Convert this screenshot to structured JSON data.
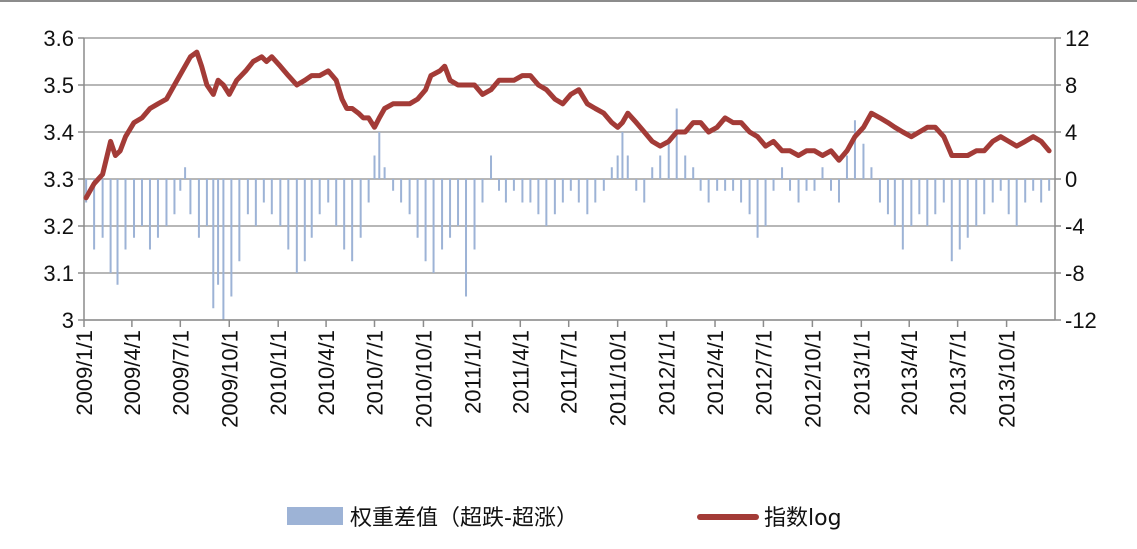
{
  "chart_data": {
    "type": "bar+line",
    "title": "",
    "y_left": {
      "range": [
        3.0,
        3.6
      ],
      "ticks": [
        "3",
        "3.1",
        "3.2",
        "3.3",
        "3.4",
        "3.5",
        "3.6"
      ]
    },
    "y_right": {
      "range": [
        -12,
        12
      ],
      "ticks": [
        "-12",
        "-8",
        "-4",
        "0",
        "4",
        "8",
        "12"
      ]
    },
    "x_axis": {
      "start": "2009/1/1",
      "end": "2013/12/31",
      "tick_labels": [
        "2009/1/1",
        "2009/4/1",
        "2009/7/1",
        "2009/10/1",
        "2010/1/1",
        "2010/4/1",
        "2010/7/1",
        "2010/10/1",
        "2011/1/1",
        "2011/4/1",
        "2011/7/1",
        "2011/10/1",
        "2012/1/1",
        "2012/4/1",
        "2012/7/1",
        "2012/10/1",
        "2013/1/1",
        "2013/4/1",
        "2013/7/1",
        "2013/10/1"
      ]
    },
    "gridlines": "horizontal",
    "legend": {
      "placement": "bottom"
    },
    "series": [
      {
        "name": "权重差值（超跌-超涨）",
        "type": "bar",
        "axis": "right",
        "color": "#9db3d6",
        "points": [
          [
            "2009/1/5",
            -2
          ],
          [
            "2009/1/20",
            -6
          ],
          [
            "2009/2/5",
            -5
          ],
          [
            "2009/2/20",
            -8
          ],
          [
            "2009/3/5",
            -9
          ],
          [
            "2009/3/20",
            -6
          ],
          [
            "2009/4/5",
            -5
          ],
          [
            "2009/4/20",
            -4
          ],
          [
            "2009/5/5",
            -6
          ],
          [
            "2009/5/20",
            -5
          ],
          [
            "2009/6/5",
            -4
          ],
          [
            "2009/6/20",
            -3
          ],
          [
            "2009/7/1",
            -1
          ],
          [
            "2009/7/10",
            1
          ],
          [
            "2009/7/20",
            -3
          ],
          [
            "2009/8/5",
            -5
          ],
          [
            "2009/8/20",
            -4
          ],
          [
            "2009/9/1",
            -11
          ],
          [
            "2009/9/10",
            -9
          ],
          [
            "2009/9/20",
            -12
          ],
          [
            "2009/10/5",
            -10
          ],
          [
            "2009/10/20",
            -7
          ],
          [
            "2009/11/5",
            -3
          ],
          [
            "2009/11/20",
            -4
          ],
          [
            "2009/12/5",
            -2
          ],
          [
            "2009/12/20",
            -3
          ],
          [
            "2010/1/5",
            -4
          ],
          [
            "2010/1/20",
            -6
          ],
          [
            "2010/2/5",
            -8
          ],
          [
            "2010/2/20",
            -7
          ],
          [
            "2010/3/5",
            -5
          ],
          [
            "2010/3/20",
            -3
          ],
          [
            "2010/4/5",
            -2
          ],
          [
            "2010/4/20",
            -4
          ],
          [
            "2010/5/5",
            -6
          ],
          [
            "2010/5/20",
            -7
          ],
          [
            "2010/6/5",
            -5
          ],
          [
            "2010/6/20",
            -2
          ],
          [
            "2010/7/1",
            2
          ],
          [
            "2010/7/10",
            4
          ],
          [
            "2010/7/20",
            1
          ],
          [
            "2010/8/5",
            -1
          ],
          [
            "2010/8/20",
            -2
          ],
          [
            "2010/9/5",
            -3
          ],
          [
            "2010/9/20",
            -5
          ],
          [
            "2010/10/5",
            -7
          ],
          [
            "2010/10/20",
            -8
          ],
          [
            "2010/11/5",
            -6
          ],
          [
            "2010/11/20",
            -5
          ],
          [
            "2010/12/5",
            -4
          ],
          [
            "2010/12/20",
            -10
          ],
          [
            "2011/1/5",
            -6
          ],
          [
            "2011/1/20",
            -2
          ],
          [
            "2011/2/5",
            2
          ],
          [
            "2011/2/20",
            -1
          ],
          [
            "2011/3/5",
            -2
          ],
          [
            "2011/3/20",
            -1
          ],
          [
            "2011/4/5",
            -2
          ],
          [
            "2011/4/20",
            -2
          ],
          [
            "2011/5/5",
            -3
          ],
          [
            "2011/5/20",
            -4
          ],
          [
            "2011/6/5",
            -3
          ],
          [
            "2011/6/20",
            -2
          ],
          [
            "2011/7/5",
            -1
          ],
          [
            "2011/7/20",
            -2
          ],
          [
            "2011/8/5",
            -3
          ],
          [
            "2011/8/20",
            -2
          ],
          [
            "2011/9/5",
            -1
          ],
          [
            "2011/9/20",
            1
          ],
          [
            "2011/10/1",
            2
          ],
          [
            "2011/10/10",
            4
          ],
          [
            "2011/10/20",
            2
          ],
          [
            "2011/11/5",
            -1
          ],
          [
            "2011/11/20",
            -2
          ],
          [
            "2011/12/5",
            1
          ],
          [
            "2011/12/20",
            2
          ],
          [
            "2012/1/5",
            3
          ],
          [
            "2012/1/20",
            6
          ],
          [
            "2012/2/5",
            2
          ],
          [
            "2012/2/20",
            1
          ],
          [
            "2012/3/5",
            -1
          ],
          [
            "2012/3/20",
            -2
          ],
          [
            "2012/4/5",
            -1
          ],
          [
            "2012/4/20",
            -1
          ],
          [
            "2012/5/5",
            -1
          ],
          [
            "2012/5/20",
            -2
          ],
          [
            "2012/6/5",
            -3
          ],
          [
            "2012/6/20",
            -5
          ],
          [
            "2012/7/5",
            -4
          ],
          [
            "2012/7/20",
            -1
          ],
          [
            "2012/8/5",
            1
          ],
          [
            "2012/8/20",
            -1
          ],
          [
            "2012/9/5",
            -2
          ],
          [
            "2012/9/20",
            -1
          ],
          [
            "2012/10/5",
            -1
          ],
          [
            "2012/10/20",
            1
          ],
          [
            "2012/11/5",
            -1
          ],
          [
            "2012/11/20",
            -2
          ],
          [
            "2012/12/5",
            2
          ],
          [
            "2012/12/20",
            5
          ],
          [
            "2013/1/5",
            3
          ],
          [
            "2013/1/20",
            1
          ],
          [
            "2013/2/5",
            -2
          ],
          [
            "2013/2/20",
            -3
          ],
          [
            "2013/3/5",
            -4
          ],
          [
            "2013/3/20",
            -6
          ],
          [
            "2013/4/5",
            -4
          ],
          [
            "2013/4/20",
            -3
          ],
          [
            "2013/5/5",
            -4
          ],
          [
            "2013/5/20",
            -3
          ],
          [
            "2013/6/5",
            -2
          ],
          [
            "2013/6/20",
            -7
          ],
          [
            "2013/7/5",
            -6
          ],
          [
            "2013/7/20",
            -5
          ],
          [
            "2013/8/5",
            -4
          ],
          [
            "2013/8/20",
            -3
          ],
          [
            "2013/9/5",
            -2
          ],
          [
            "2013/9/20",
            -1
          ],
          [
            "2013/10/5",
            -3
          ],
          [
            "2013/10/20",
            -4
          ],
          [
            "2013/11/5",
            -2
          ],
          [
            "2013/11/20",
            -1
          ],
          [
            "2013/12/5",
            -2
          ],
          [
            "2013/12/20",
            -1
          ]
        ]
      },
      {
        "name": "指数log",
        "type": "line",
        "axis": "left",
        "color": "#a33b37",
        "points": [
          [
            "2009/1/5",
            3.26
          ],
          [
            "2009/1/20",
            3.29
          ],
          [
            "2009/2/5",
            3.31
          ],
          [
            "2009/2/20",
            3.38
          ],
          [
            "2009/3/1",
            3.35
          ],
          [
            "2009/3/10",
            3.36
          ],
          [
            "2009/3/20",
            3.39
          ],
          [
            "2009/4/5",
            3.42
          ],
          [
            "2009/4/20",
            3.43
          ],
          [
            "2009/5/5",
            3.45
          ],
          [
            "2009/5/20",
            3.46
          ],
          [
            "2009/6/5",
            3.47
          ],
          [
            "2009/6/20",
            3.5
          ],
          [
            "2009/7/5",
            3.53
          ],
          [
            "2009/7/20",
            3.56
          ],
          [
            "2009/8/1",
            3.57
          ],
          [
            "2009/8/10",
            3.54
          ],
          [
            "2009/8/20",
            3.5
          ],
          [
            "2009/9/1",
            3.48
          ],
          [
            "2009/9/10",
            3.51
          ],
          [
            "2009/9/20",
            3.5
          ],
          [
            "2009/10/1",
            3.48
          ],
          [
            "2009/10/15",
            3.51
          ],
          [
            "2009/11/1",
            3.53
          ],
          [
            "2009/11/15",
            3.55
          ],
          [
            "2009/12/1",
            3.56
          ],
          [
            "2009/12/10",
            3.55
          ],
          [
            "2009/12/20",
            3.56
          ],
          [
            "2010/1/5",
            3.54
          ],
          [
            "2010/1/20",
            3.52
          ],
          [
            "2010/2/5",
            3.5
          ],
          [
            "2010/2/20",
            3.51
          ],
          [
            "2010/3/5",
            3.52
          ],
          [
            "2010/3/20",
            3.52
          ],
          [
            "2010/4/5",
            3.53
          ],
          [
            "2010/4/20",
            3.51
          ],
          [
            "2010/5/1",
            3.47
          ],
          [
            "2010/5/10",
            3.45
          ],
          [
            "2010/5/20",
            3.45
          ],
          [
            "2010/6/1",
            3.44
          ],
          [
            "2010/6/10",
            3.43
          ],
          [
            "2010/6/20",
            3.43
          ],
          [
            "2010/7/1",
            3.41
          ],
          [
            "2010/7/10",
            3.43
          ],
          [
            "2010/7/20",
            3.45
          ],
          [
            "2010/8/5",
            3.46
          ],
          [
            "2010/8/20",
            3.46
          ],
          [
            "2010/9/5",
            3.46
          ],
          [
            "2010/9/20",
            3.47
          ],
          [
            "2010/10/5",
            3.49
          ],
          [
            "2010/10/15",
            3.52
          ],
          [
            "2010/11/1",
            3.53
          ],
          [
            "2010/11/10",
            3.54
          ],
          [
            "2010/11/20",
            3.51
          ],
          [
            "2010/12/5",
            3.5
          ],
          [
            "2010/12/20",
            3.5
          ],
          [
            "2011/1/5",
            3.5
          ],
          [
            "2011/1/20",
            3.48
          ],
          [
            "2011/2/5",
            3.49
          ],
          [
            "2011/2/20",
            3.51
          ],
          [
            "2011/3/5",
            3.51
          ],
          [
            "2011/3/20",
            3.51
          ],
          [
            "2011/4/5",
            3.52
          ],
          [
            "2011/4/20",
            3.52
          ],
          [
            "2011/5/5",
            3.5
          ],
          [
            "2011/5/20",
            3.49
          ],
          [
            "2011/6/5",
            3.47
          ],
          [
            "2011/6/20",
            3.46
          ],
          [
            "2011/7/5",
            3.48
          ],
          [
            "2011/7/20",
            3.49
          ],
          [
            "2011/8/5",
            3.46
          ],
          [
            "2011/8/20",
            3.45
          ],
          [
            "2011/9/5",
            3.44
          ],
          [
            "2011/9/20",
            3.42
          ],
          [
            "2011/10/1",
            3.41
          ],
          [
            "2011/10/10",
            3.42
          ],
          [
            "2011/10/20",
            3.44
          ],
          [
            "2011/11/5",
            3.42
          ],
          [
            "2011/11/20",
            3.4
          ],
          [
            "2011/12/5",
            3.38
          ],
          [
            "2011/12/20",
            3.37
          ],
          [
            "2012/1/5",
            3.38
          ],
          [
            "2012/1/20",
            3.4
          ],
          [
            "2012/2/5",
            3.4
          ],
          [
            "2012/2/20",
            3.42
          ],
          [
            "2012/3/5",
            3.42
          ],
          [
            "2012/3/20",
            3.4
          ],
          [
            "2012/4/5",
            3.41
          ],
          [
            "2012/4/20",
            3.43
          ],
          [
            "2012/5/5",
            3.42
          ],
          [
            "2012/5/20",
            3.42
          ],
          [
            "2012/6/5",
            3.4
          ],
          [
            "2012/6/20",
            3.39
          ],
          [
            "2012/7/5",
            3.37
          ],
          [
            "2012/7/20",
            3.38
          ],
          [
            "2012/8/5",
            3.36
          ],
          [
            "2012/8/20",
            3.36
          ],
          [
            "2012/9/5",
            3.35
          ],
          [
            "2012/9/20",
            3.36
          ],
          [
            "2012/10/5",
            3.36
          ],
          [
            "2012/10/20",
            3.35
          ],
          [
            "2012/11/5",
            3.36
          ],
          [
            "2012/11/20",
            3.34
          ],
          [
            "2012/12/5",
            3.36
          ],
          [
            "2012/12/20",
            3.39
          ],
          [
            "2013/1/5",
            3.41
          ],
          [
            "2013/1/20",
            3.44
          ],
          [
            "2013/2/5",
            3.43
          ],
          [
            "2013/2/20",
            3.42
          ],
          [
            "2013/3/5",
            3.41
          ],
          [
            "2013/3/20",
            3.4
          ],
          [
            "2013/4/5",
            3.39
          ],
          [
            "2013/4/20",
            3.4
          ],
          [
            "2013/5/5",
            3.41
          ],
          [
            "2013/5/20",
            3.41
          ],
          [
            "2013/6/5",
            3.39
          ],
          [
            "2013/6/20",
            3.35
          ],
          [
            "2013/7/5",
            3.35
          ],
          [
            "2013/7/20",
            3.35
          ],
          [
            "2013/8/5",
            3.36
          ],
          [
            "2013/8/20",
            3.36
          ],
          [
            "2013/9/5",
            3.38
          ],
          [
            "2013/9/20",
            3.39
          ],
          [
            "2013/10/5",
            3.38
          ],
          [
            "2013/10/20",
            3.37
          ],
          [
            "2013/11/5",
            3.38
          ],
          [
            "2013/11/20",
            3.39
          ],
          [
            "2013/12/5",
            3.38
          ],
          [
            "2013/12/20",
            3.36
          ]
        ]
      }
    ]
  }
}
